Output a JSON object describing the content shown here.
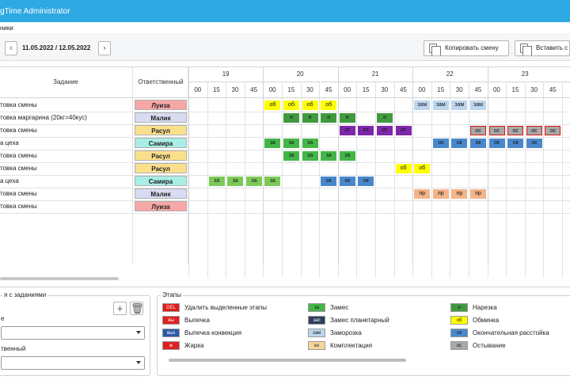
{
  "window": {
    "title": "gTime Administrator"
  },
  "menu": {
    "item": "ники"
  },
  "toolbar": {
    "prev_icon": "chevron-left-icon",
    "next_icon": "chevron-right-icon",
    "date_range": "11.05.2022 / 12.05.2022",
    "copy_shift": "Копировать смену",
    "paste_shift": "Вставить с"
  },
  "grid": {
    "task_header": "Задание",
    "resp_header": "Ответственный",
    "hours": [
      "19",
      "20",
      "21",
      "22",
      "23"
    ],
    "minute_labels": [
      "00",
      "15",
      "30",
      "45"
    ],
    "rows": [
      {
        "task": "товка смены",
        "resp": "Луиза",
        "resp_color": "#f8a7a7"
      },
      {
        "task": "товка маргарина (20кг=40кус)",
        "resp": "Малик",
        "resp_color": "#d7dcf2"
      },
      {
        "task": "товка смены",
        "resp": "Расул",
        "resp_color": "#fbe08c"
      },
      {
        "task": "а цеха",
        "resp": "Самира",
        "resp_color": "#a9eee6"
      },
      {
        "task": "товка смены",
        "resp": "Расул",
        "resp_color": "#fbe08c"
      },
      {
        "task": "товка смены",
        "resp": "Расул",
        "resp_color": "#fbe08c"
      },
      {
        "task": "а цеха",
        "resp": "Самира",
        "resp_color": "#a9eee6"
      },
      {
        "task": "товка смены",
        "resp": "Малик",
        "resp_color": "#d7dcf2"
      },
      {
        "task": "товка смены",
        "resp": "Луиза",
        "resp_color": "#f8a7a7"
      }
    ],
    "cells": [
      {
        "row": 0,
        "slot": 4,
        "text": "об",
        "color": "#ffff00"
      },
      {
        "row": 0,
        "slot": 5,
        "text": "об",
        "color": "#ffff00"
      },
      {
        "row": 0,
        "slot": 6,
        "text": "об",
        "color": "#ffff00"
      },
      {
        "row": 0,
        "slot": 7,
        "text": "об",
        "color": "#ffff00"
      },
      {
        "row": 0,
        "slot": 12,
        "text": "зам",
        "color": "#bcd6ee"
      },
      {
        "row": 0,
        "slot": 13,
        "text": "зам",
        "color": "#bcd6ee"
      },
      {
        "row": 0,
        "slot": 14,
        "text": "зам",
        "color": "#bcd6ee"
      },
      {
        "row": 0,
        "slot": 15,
        "text": "зам",
        "color": "#bcd6ee"
      },
      {
        "row": 1,
        "slot": 5,
        "text": "н",
        "color": "#3f9a3f"
      },
      {
        "row": 1,
        "slot": 6,
        "text": "н",
        "color": "#3f9a3f"
      },
      {
        "row": 1,
        "slot": 7,
        "text": "н",
        "color": "#3f9a3f"
      },
      {
        "row": 1,
        "slot": 8,
        "text": "н",
        "color": "#3f9a3f"
      },
      {
        "row": 1,
        "slot": 10,
        "text": "н",
        "color": "#3f9a3f"
      },
      {
        "row": 2,
        "slot": 8,
        "text": "от",
        "color": "#7e27a8"
      },
      {
        "row": 2,
        "slot": 9,
        "text": "от",
        "color": "#7e27a8"
      },
      {
        "row": 2,
        "slot": 10,
        "text": "от",
        "color": "#7e27a8"
      },
      {
        "row": 2,
        "slot": 11,
        "text": "от",
        "color": "#7e27a8"
      },
      {
        "row": 2,
        "slot": 15,
        "text": "ос",
        "color": "#a9a9a9",
        "outlined": true
      },
      {
        "row": 2,
        "slot": 16,
        "text": "ос",
        "color": "#a9a9a9",
        "outlined": true
      },
      {
        "row": 2,
        "slot": 17,
        "text": "ос",
        "color": "#a9a9a9",
        "outlined": true
      },
      {
        "row": 2,
        "slot": 18,
        "text": "ос",
        "color": "#a9a9a9",
        "outlined": true
      },
      {
        "row": 2,
        "slot": 19,
        "text": "ос",
        "color": "#a9a9a9",
        "outlined": true
      },
      {
        "row": 2,
        "slot": 20,
        "text": "ос",
        "color": "#a9a9a9",
        "outlined": true
      },
      {
        "row": 3,
        "slot": 4,
        "text": "за",
        "color": "#43b648"
      },
      {
        "row": 3,
        "slot": 5,
        "text": "за",
        "color": "#43b648"
      },
      {
        "row": 3,
        "slot": 6,
        "text": "за",
        "color": "#43b648"
      },
      {
        "row": 3,
        "slot": 13,
        "text": "ок",
        "color": "#4a88cc"
      },
      {
        "row": 3,
        "slot": 14,
        "text": "ок",
        "color": "#4a88cc"
      },
      {
        "row": 3,
        "slot": 15,
        "text": "ок",
        "color": "#4a88cc"
      },
      {
        "row": 3,
        "slot": 16,
        "text": "ок",
        "color": "#4a88cc"
      },
      {
        "row": 3,
        "slot": 17,
        "text": "ок",
        "color": "#4a88cc"
      },
      {
        "row": 3,
        "slot": 18,
        "text": "ок",
        "color": "#4a88cc"
      },
      {
        "row": 4,
        "slot": 5,
        "text": "за",
        "color": "#43b648"
      },
      {
        "row": 4,
        "slot": 6,
        "text": "за",
        "color": "#43b648"
      },
      {
        "row": 4,
        "slot": 7,
        "text": "за",
        "color": "#43b648"
      },
      {
        "row": 4,
        "slot": 8,
        "text": "за",
        "color": "#43b648"
      },
      {
        "row": 5,
        "slot": 11,
        "text": "об",
        "color": "#ffff00"
      },
      {
        "row": 5,
        "slot": 12,
        "text": "об",
        "color": "#ffff00"
      },
      {
        "row": 6,
        "slot": 1,
        "text": "за",
        "color": "#7cc95a"
      },
      {
        "row": 6,
        "slot": 2,
        "text": "за",
        "color": "#7cc95a"
      },
      {
        "row": 6,
        "slot": 3,
        "text": "за",
        "color": "#7cc95a"
      },
      {
        "row": 6,
        "slot": 4,
        "text": "за",
        "color": "#7cc95a"
      },
      {
        "row": 6,
        "slot": 7,
        "text": "ок",
        "color": "#4a88cc"
      },
      {
        "row": 6,
        "slot": 8,
        "text": "ок",
        "color": "#4a88cc"
      },
      {
        "row": 6,
        "slot": 9,
        "text": "ок",
        "color": "#4a88cc"
      },
      {
        "row": 7,
        "slot": 12,
        "text": "пр",
        "color": "#f4b48a"
      },
      {
        "row": 7,
        "slot": 13,
        "text": "пр",
        "color": "#f4b48a"
      },
      {
        "row": 7,
        "slot": 14,
        "text": "пр",
        "color": "#f4b48a"
      },
      {
        "row": 7,
        "slot": 15,
        "text": "пр",
        "color": "#f4b48a"
      }
    ]
  },
  "left_panel": {
    "group_title": "я с заданиями",
    "add_icon": "plus-icon",
    "delete_icon": "trash-icon",
    "field1_label": "е",
    "field2_label": "твенный"
  },
  "legend": {
    "title": "Этапы",
    "items": [
      {
        "code": "DEL",
        "label": "Удалить выделенные этапы",
        "color": "#e01b1b",
        "text_color": "#ffffff"
      },
      {
        "code": "вы",
        "label": "Выпечка",
        "color": "#e02020",
        "text_color": "#ffffff"
      },
      {
        "code": "вык",
        "label": "Выпечка конвекция",
        "color": "#2e5aa8",
        "text_color": "#ffffff"
      },
      {
        "code": "ж",
        "label": "Жарка",
        "color": "#e02020",
        "text_color": "#ffffff"
      },
      {
        "code": "за",
        "label": "Замес",
        "color": "#43b648",
        "text_color": "#111111"
      },
      {
        "code": "зап",
        "label": "Замес планетарный",
        "color": "#2c3e5a",
        "text_color": "#ffffff"
      },
      {
        "code": "зам",
        "label": "Заморозка",
        "color": "#bcd6ee",
        "text_color": "#111111"
      },
      {
        "code": "ко",
        "label": "Комплектация",
        "color": "#f6d69c",
        "text_color": "#111111"
      },
      {
        "code": "н",
        "label": "Нарезка",
        "color": "#3f9a3f",
        "text_color": "#111111"
      },
      {
        "code": "об",
        "label": "Обминка",
        "color": "#ffff00",
        "text_color": "#111111"
      },
      {
        "code": "ок",
        "label": "Окончательная расстойка",
        "color": "#4a88cc",
        "text_color": "#111111"
      },
      {
        "code": "ос",
        "label": "Остывание",
        "color": "#a9a9a9",
        "text_color": "#111111"
      }
    ]
  }
}
